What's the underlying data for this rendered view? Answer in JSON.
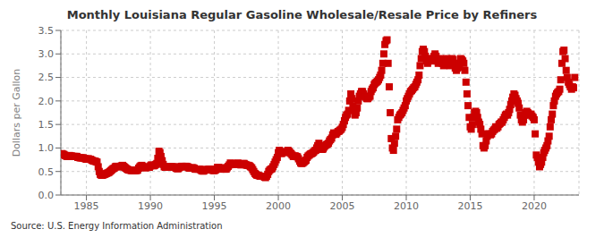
{
  "chart_data": {
    "type": "scatter",
    "title": "Monthly Louisiana Regular Gasoline Wholesale/Resale Price by Refiners",
    "y_label": "Dollars per Gallon",
    "annotations": [
      "Source: U.S. Energy Information Administration"
    ],
    "color": "#cc0000",
    "marker": "square",
    "grid": true,
    "xlim": [
      1983.0,
      2023.5
    ],
    "ylim": [
      0.0,
      3.5
    ],
    "xticks": [
      1985,
      1990,
      1995,
      2000,
      2005,
      2010,
      2015,
      2020
    ],
    "yticks": [
      {
        "value": 0.0,
        "label": "0.0"
      },
      0.5,
      {
        "value": 1.0,
        "label": "1.0"
      },
      1.5,
      {
        "value": 2.0,
        "label": "2.0"
      },
      2.5,
      {
        "value": 3.0,
        "label": "3.0"
      },
      3.5
    ],
    "x": [
      1983.08,
      1983.17,
      1983.25,
      1983.33,
      1983.42,
      1983.5,
      1983.58,
      1983.67,
      1983.75,
      1983.83,
      1983.92,
      1984.0,
      1984.08,
      1984.17,
      1984.25,
      1984.33,
      1984.42,
      1984.5,
      1984.58,
      1984.67,
      1984.75,
      1984.83,
      1984.92,
      1985.0,
      1985.08,
      1985.17,
      1985.25,
      1985.33,
      1985.42,
      1985.5,
      1985.58,
      1985.67,
      1985.75,
      1985.83,
      1985.92,
      1986.0,
      1986.08,
      1986.17,
      1986.25,
      1986.33,
      1986.42,
      1986.5,
      1986.58,
      1986.67,
      1986.75,
      1986.83,
      1986.92,
      1987.0,
      1987.08,
      1987.17,
      1987.25,
      1987.33,
      1987.42,
      1987.5,
      1987.58,
      1987.67,
      1987.75,
      1987.83,
      1987.92,
      1988.0,
      1988.08,
      1988.17,
      1988.25,
      1988.33,
      1988.42,
      1988.5,
      1988.58,
      1988.67,
      1988.75,
      1988.83,
      1988.92,
      1989.0,
      1989.08,
      1989.17,
      1989.25,
      1989.33,
      1989.42,
      1989.5,
      1989.58,
      1989.67,
      1989.75,
      1989.83,
      1989.92,
      1990.0,
      1990.08,
      1990.17,
      1990.25,
      1990.33,
      1990.42,
      1990.5,
      1990.58,
      1990.67,
      1990.75,
      1990.83,
      1990.92,
      1991.0,
      1991.08,
      1991.17,
      1991.25,
      1991.33,
      1991.42,
      1991.5,
      1991.58,
      1991.67,
      1991.75,
      1991.83,
      1991.92,
      1992.0,
      1992.08,
      1992.17,
      1992.25,
      1992.33,
      1992.42,
      1992.5,
      1992.58,
      1992.67,
      1992.75,
      1992.83,
      1992.92,
      1993.0,
      1993.08,
      1993.17,
      1993.25,
      1993.33,
      1993.42,
      1993.5,
      1993.58,
      1993.67,
      1993.75,
      1993.83,
      1993.92,
      1994.0,
      1994.08,
      1994.17,
      1994.25,
      1994.33,
      1994.42,
      1994.5,
      1994.58,
      1994.67,
      1994.75,
      1994.83,
      1994.92,
      1995.0,
      1995.08,
      1995.17,
      1995.25,
      1995.33,
      1995.42,
      1995.5,
      1995.58,
      1995.67,
      1995.75,
      1995.83,
      1995.92,
      1996.0,
      1996.08,
      1996.17,
      1996.25,
      1996.33,
      1996.42,
      1996.5,
      1996.58,
      1996.67,
      1996.75,
      1996.83,
      1996.92,
      1997.0,
      1997.08,
      1997.17,
      1997.25,
      1997.33,
      1997.42,
      1997.5,
      1997.58,
      1997.67,
      1997.75,
      1997.83,
      1997.92,
      1998.0,
      1998.08,
      1998.17,
      1998.25,
      1998.33,
      1998.42,
      1998.5,
      1998.58,
      1998.67,
      1998.75,
      1998.83,
      1998.92,
      1999.0,
      1999.08,
      1999.17,
      1999.25,
      1999.33,
      1999.42,
      1999.5,
      1999.58,
      1999.67,
      1999.75,
      1999.83,
      1999.92,
      2000.0,
      2000.08,
      2000.17,
      2000.25,
      2000.33,
      2000.42,
      2000.5,
      2000.58,
      2000.67,
      2000.75,
      2000.83,
      2000.92,
      2001.0,
      2001.08,
      2001.17,
      2001.25,
      2001.33,
      2001.42,
      2001.5,
      2001.58,
      2001.67,
      2001.75,
      2001.83,
      2001.92,
      2002.0,
      2002.08,
      2002.17,
      2002.25,
      2002.33,
      2002.42,
      2002.5,
      2002.58,
      2002.67,
      2002.75,
      2002.83,
      2002.92,
      2003.0,
      2003.08,
      2003.17,
      2003.25,
      2003.33,
      2003.42,
      2003.5,
      2003.58,
      2003.67,
      2003.75,
      2003.83,
      2003.92,
      2004.0,
      2004.08,
      2004.17,
      2004.25,
      2004.33,
      2004.42,
      2004.5,
      2004.58,
      2004.67,
      2004.75,
      2004.83,
      2004.92,
      2005.0,
      2005.08,
      2005.17,
      2005.25,
      2005.33,
      2005.42,
      2005.5,
      2005.58,
      2005.67,
      2005.75,
      2005.83,
      2005.92,
      2006.0,
      2006.08,
      2006.17,
      2006.25,
      2006.33,
      2006.42,
      2006.5,
      2006.58,
      2006.67,
      2006.75,
      2006.83,
      2006.92,
      2007.0,
      2007.08,
      2007.17,
      2007.25,
      2007.33,
      2007.42,
      2007.5,
      2007.58,
      2007.67,
      2007.75,
      2007.83,
      2007.92,
      2008.0,
      2008.08,
      2008.17,
      2008.25,
      2008.33,
      2008.42,
      2008.5,
      2008.58,
      2008.67,
      2008.75,
      2008.83,
      2008.92,
      2009.0,
      2009.08,
      2009.17,
      2009.25,
      2009.33,
      2009.42,
      2009.5,
      2009.58,
      2009.67,
      2009.75,
      2009.83,
      2009.92,
      2010.0,
      2010.08,
      2010.17,
      2010.25,
      2010.33,
      2010.42,
      2010.5,
      2010.58,
      2010.67,
      2010.75,
      2010.83,
      2010.92,
      2011.0,
      2011.08,
      2011.17,
      2011.25,
      2011.33,
      2011.42,
      2011.5,
      2011.58,
      2011.67,
      2011.75,
      2011.83,
      2011.92,
      2012.0,
      2012.08,
      2012.17,
      2012.25,
      2012.33,
      2012.42,
      2012.5,
      2012.58,
      2012.67,
      2012.75,
      2012.83,
      2012.92,
      2013.0,
      2013.08,
      2013.17,
      2013.25,
      2013.33,
      2013.42,
      2013.5,
      2013.58,
      2013.67,
      2013.75,
      2013.83,
      2013.92,
      2014.0,
      2014.08,
      2014.17,
      2014.25,
      2014.33,
      2014.42,
      2014.5,
      2014.58,
      2014.67,
      2014.75,
      2014.83,
      2014.92,
      2015.0,
      2015.08,
      2015.17,
      2015.25,
      2015.33,
      2015.42,
      2015.5,
      2015.58,
      2015.67,
      2015.75,
      2015.83,
      2015.92,
      2016.0,
      2016.08,
      2016.17,
      2016.25,
      2016.33,
      2016.42,
      2016.5,
      2016.58,
      2016.67,
      2016.75,
      2016.83,
      2016.92,
      2017.0,
      2017.08,
      2017.17,
      2017.25,
      2017.33,
      2017.42,
      2017.5,
      2017.58,
      2017.67,
      2017.75,
      2017.83,
      2017.92,
      2018.0,
      2018.08,
      2018.17,
      2018.25,
      2018.33,
      2018.42,
      2018.5,
      2018.58,
      2018.67,
      2018.75,
      2018.83,
      2018.92,
      2019.0,
      2019.08,
      2019.17,
      2019.25,
      2019.33,
      2019.42,
      2019.5,
      2019.58,
      2019.67,
      2019.75,
      2019.83,
      2019.92,
      2020.0,
      2020.08,
      2020.17,
      2020.25,
      2020.33,
      2020.42,
      2020.5,
      2020.58,
      2020.67,
      2020.75,
      2020.83,
      2020.92,
      2021.0,
      2021.08,
      2021.17,
      2021.25,
      2021.33,
      2021.42,
      2021.5,
      2021.58,
      2021.67,
      2021.75,
      2021.83,
      2021.92,
      2022.0,
      2022.08,
      2022.17,
      2022.25,
      2022.33,
      2022.42,
      2022.5,
      2022.58,
      2022.67,
      2022.75,
      2022.83,
      2022.92,
      2023.0,
      2023.08,
      2023.17
    ],
    "values": [
      0.88,
      0.87,
      0.86,
      0.84,
      0.83,
      0.82,
      0.83,
      0.84,
      0.83,
      0.83,
      0.82,
      0.82,
      0.82,
      0.82,
      0.82,
      0.8,
      0.8,
      0.79,
      0.79,
      0.79,
      0.79,
      0.78,
      0.77,
      0.76,
      0.77,
      0.77,
      0.76,
      0.76,
      0.74,
      0.73,
      0.72,
      0.72,
      0.71,
      0.7,
      0.6,
      0.5,
      0.44,
      0.42,
      0.42,
      0.43,
      0.44,
      0.45,
      0.46,
      0.47,
      0.48,
      0.5,
      0.52,
      0.54,
      0.56,
      0.57,
      0.6,
      0.61,
      0.61,
      0.6,
      0.6,
      0.61,
      0.62,
      0.63,
      0.61,
      0.59,
      0.57,
      0.55,
      0.54,
      0.53,
      0.53,
      0.52,
      0.52,
      0.52,
      0.52,
      0.52,
      0.52,
      0.53,
      0.57,
      0.6,
      0.62,
      0.63,
      0.61,
      0.59,
      0.58,
      0.58,
      0.59,
      0.59,
      0.59,
      0.62,
      0.64,
      0.63,
      0.62,
      0.63,
      0.65,
      0.67,
      0.78,
      0.93,
      0.9,
      0.82,
      0.73,
      0.65,
      0.6,
      0.59,
      0.6,
      0.6,
      0.6,
      0.6,
      0.6,
      0.6,
      0.6,
      0.6,
      0.59,
      0.57,
      0.56,
      0.56,
      0.58,
      0.6,
      0.61,
      0.61,
      0.6,
      0.6,
      0.61,
      0.61,
      0.6,
      0.58,
      0.57,
      0.57,
      0.58,
      0.58,
      0.57,
      0.55,
      0.55,
      0.55,
      0.55,
      0.55,
      0.54,
      0.52,
      0.51,
      0.51,
      0.53,
      0.54,
      0.54,
      0.54,
      0.55,
      0.55,
      0.54,
      0.53,
      0.52,
      0.52,
      0.53,
      0.55,
      0.59,
      0.59,
      0.57,
      0.55,
      0.56,
      0.58,
      0.57,
      0.55,
      0.55,
      0.58,
      0.61,
      0.64,
      0.68,
      0.67,
      0.66,
      0.65,
      0.65,
      0.66,
      0.67,
      0.68,
      0.66,
      0.65,
      0.64,
      0.65,
      0.67,
      0.67,
      0.65,
      0.64,
      0.63,
      0.63,
      0.62,
      0.6,
      0.58,
      0.54,
      0.5,
      0.46,
      0.44,
      0.42,
      0.42,
      0.41,
      0.4,
      0.4,
      0.4,
      0.4,
      0.38,
      0.37,
      0.4,
      0.44,
      0.5,
      0.53,
      0.55,
      0.56,
      0.6,
      0.65,
      0.7,
      0.75,
      0.8,
      0.9,
      0.95,
      0.92,
      0.88,
      0.9,
      0.91,
      0.92,
      0.91,
      0.92,
      0.95,
      0.93,
      0.9,
      0.88,
      0.85,
      0.82,
      0.83,
      0.83,
      0.82,
      0.81,
      0.77,
      0.72,
      0.68,
      0.67,
      0.68,
      0.7,
      0.72,
      0.74,
      0.8,
      0.83,
      0.85,
      0.87,
      0.88,
      0.89,
      0.91,
      0.94,
      0.95,
      1.0,
      1.05,
      1.1,
      1.03,
      0.98,
      0.97,
      0.98,
      1.02,
      1.05,
      1.07,
      1.08,
      1.1,
      1.15,
      1.18,
      1.21,
      1.28,
      1.32,
      1.3,
      1.29,
      1.32,
      1.35,
      1.36,
      1.38,
      1.4,
      1.44,
      1.5,
      1.58,
      1.65,
      1.7,
      1.72,
      1.8,
      2.0,
      2.15,
      2.05,
      1.9,
      1.8,
      1.7,
      1.75,
      1.85,
      2.0,
      2.1,
      2.15,
      2.2,
      2.2,
      2.15,
      2.1,
      2.08,
      2.05,
      2.05,
      2.08,
      2.1,
      2.2,
      2.25,
      2.28,
      2.35,
      2.38,
      2.4,
      2.42,
      2.45,
      2.5,
      2.55,
      2.65,
      2.8,
      3.0,
      3.2,
      3.28,
      3.3,
      2.8,
      2.3,
      1.75,
      1.2,
      1.0,
      0.95,
      1.1,
      1.25,
      1.4,
      1.6,
      1.65,
      1.7,
      1.72,
      1.75,
      1.8,
      1.85,
      1.9,
      2.0,
      2.05,
      2.1,
      2.15,
      2.2,
      2.22,
      2.25,
      2.28,
      2.3,
      2.35,
      2.4,
      2.45,
      2.55,
      2.75,
      2.9,
      3.05,
      3.1,
      3.05,
      2.95,
      2.85,
      2.8,
      2.85,
      2.9,
      2.88,
      2.85,
      2.9,
      2.95,
      3.0,
      2.95,
      2.85,
      2.8,
      2.88,
      2.9,
      2.85,
      2.8,
      2.75,
      2.8,
      2.85,
      2.9,
      2.88,
      2.82,
      2.75,
      2.8,
      2.9,
      2.88,
      2.8,
      2.7,
      2.65,
      2.7,
      2.72,
      2.8,
      2.9,
      2.88,
      2.85,
      2.8,
      2.65,
      2.4,
      2.15,
      1.9,
      1.65,
      1.45,
      1.4,
      1.5,
      1.65,
      1.75,
      1.78,
      1.75,
      1.65,
      1.55,
      1.5,
      1.4,
      1.3,
      1.05,
      1.0,
      1.05,
      1.15,
      1.25,
      1.3,
      1.3,
      1.28,
      1.3,
      1.35,
      1.38,
      1.4,
      1.45,
      1.42,
      1.45,
      1.5,
      1.52,
      1.55,
      1.55,
      1.6,
      1.65,
      1.7,
      1.72,
      1.7,
      1.75,
      1.82,
      1.92,
      2.0,
      2.08,
      2.15,
      2.12,
      2.05,
      2.0,
      1.95,
      1.85,
      1.7,
      1.6,
      1.55,
      1.6,
      1.7,
      1.75,
      1.78,
      1.75,
      1.72,
      1.7,
      1.72,
      1.68,
      1.65,
      1.6,
      1.3,
      0.85,
      0.8,
      0.7,
      0.6,
      0.65,
      0.7,
      0.8,
      0.9,
      0.95,
      1.0,
      1.05,
      1.15,
      1.25,
      1.45,
      1.6,
      1.72,
      1.9,
      2.0,
      2.1,
      2.15,
      2.18,
      2.2,
      2.25,
      2.45,
      2.8,
      3.05,
      3.08,
      2.9,
      2.65,
      2.5,
      2.4,
      2.35,
      2.3,
      2.25,
      2.3,
      2.28,
      2.5
    ]
  }
}
